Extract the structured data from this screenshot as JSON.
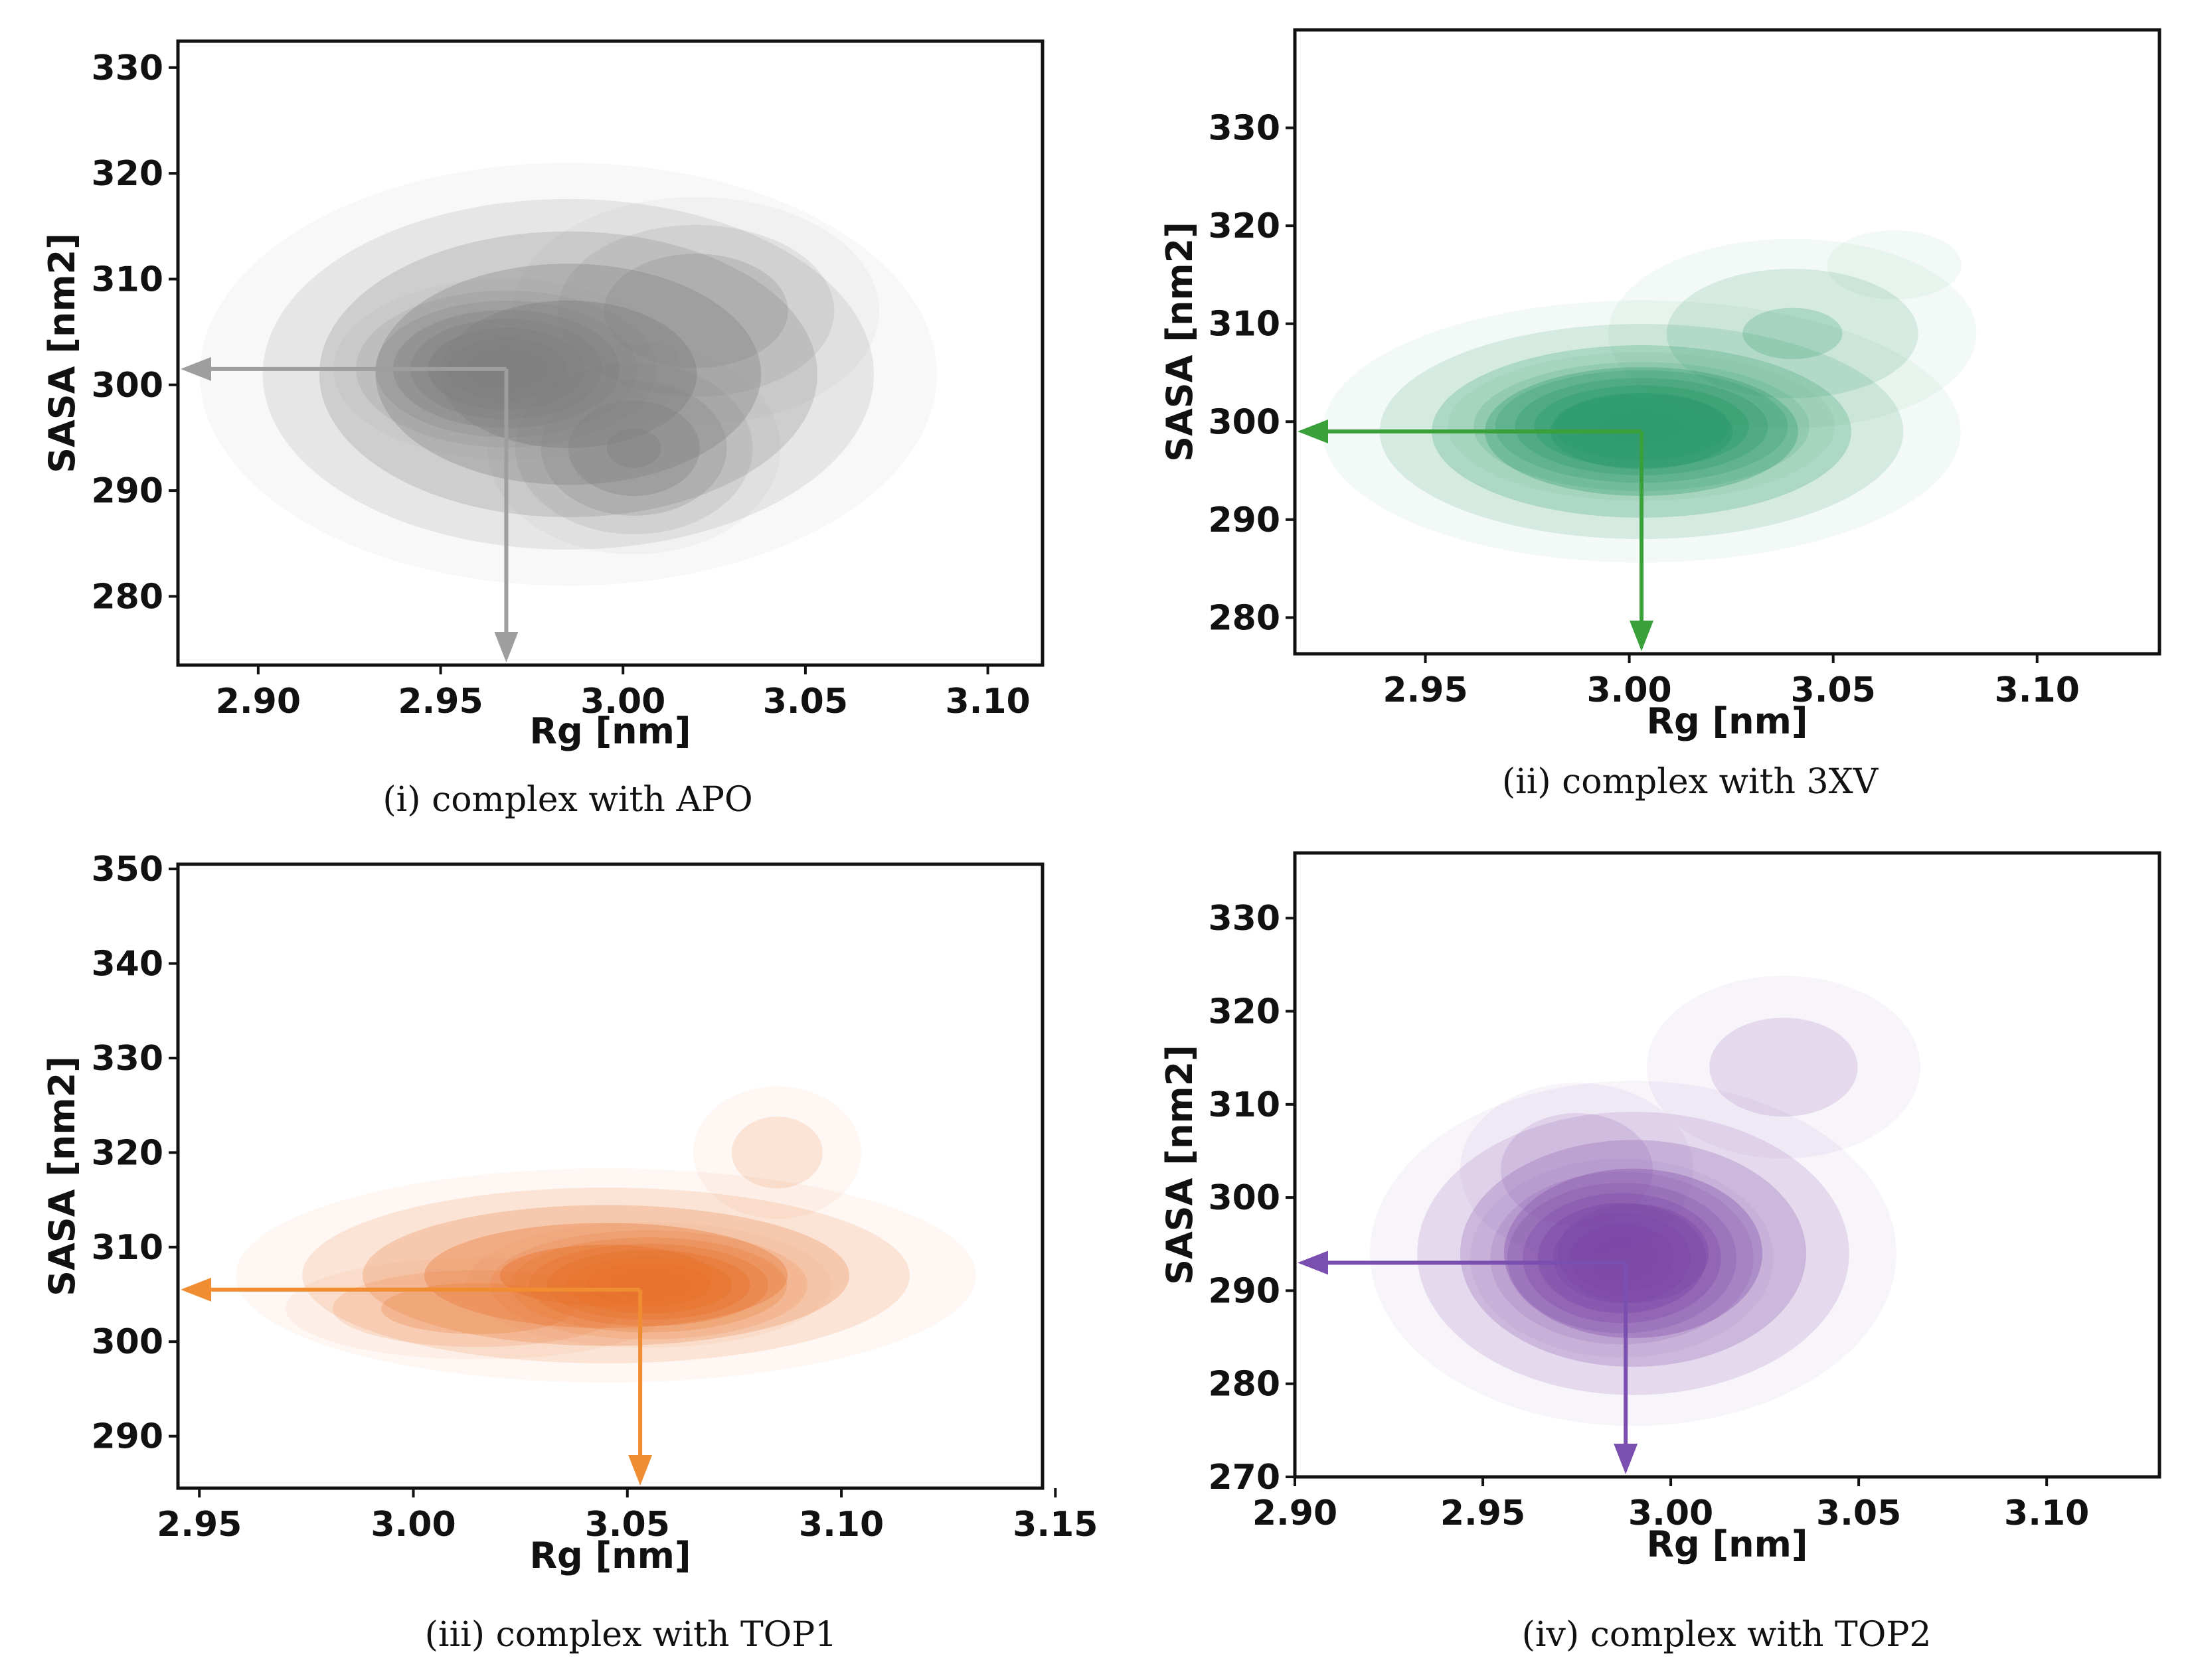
{
  "figure": {
    "panels": [
      {
        "caption": "(i) complex with APO",
        "color": "#808080",
        "arrow_color": "#9e9e9e",
        "chart_data": {
          "type": "kde-contour",
          "xlabel": "Rg [nm]",
          "ylabel": "SASA [nm2]",
          "xlim": [
            2.878,
            3.115
          ],
          "ylim": [
            273.5,
            332.5
          ],
          "xticks": [
            2.9,
            2.95,
            3.0,
            3.05,
            3.1
          ],
          "xtick_labels": [
            "2.90",
            "2.95",
            "3.00",
            "3.05",
            "3.10"
          ],
          "yticks": [
            280,
            290,
            300,
            310,
            320,
            330
          ],
          "ytick_labels": [
            "280",
            "290",
            "300",
            "310",
            "320",
            "330"
          ],
          "peak": {
            "x": 2.968,
            "y": 301.5
          },
          "density_blobs": [
            {
              "cx": 2.985,
              "cy": 301,
              "sx": 0.048,
              "sy": 9.5,
              "w": 0.55
            },
            {
              "cx": 2.968,
              "cy": 301.5,
              "sx": 0.02,
              "sy": 3.6,
              "w": 1.0
            },
            {
              "cx": 3.003,
              "cy": 294,
              "sx": 0.02,
              "sy": 5,
              "w": 0.45
            },
            {
              "cx": 3.02,
              "cy": 307,
              "sx": 0.028,
              "sy": 6,
              "w": 0.3
            }
          ]
        }
      },
      {
        "caption": "(ii) complex with 3XV",
        "color": "#2e9b6e",
        "arrow_color": "#3aa03a",
        "chart_data": {
          "type": "kde-contour",
          "xlabel": "Rg [nm]",
          "ylabel": "SASA [nm2]",
          "xlim": [
            2.918,
            3.13
          ],
          "ylim": [
            276.3,
            340
          ],
          "xticks": [
            2.95,
            3.0,
            3.05,
            3.1
          ],
          "xtick_labels": [
            "2.95",
            "3.00",
            "3.05",
            "3.10"
          ],
          "yticks": [
            280,
            290,
            300,
            310,
            320,
            330
          ],
          "ytick_labels": [
            "280",
            "290",
            "300",
            "310",
            "320",
            "330"
          ],
          "peak": {
            "x": 3.003,
            "y": 299
          },
          "density_blobs": [
            {
              "cx": 3.003,
              "cy": 299,
              "sx": 0.038,
              "sy": 6.5,
              "w": 0.5
            },
            {
              "cx": 3.003,
              "cy": 299.5,
              "sx": 0.02,
              "sy": 3.2,
              "w": 1.0
            },
            {
              "cx": 3.04,
              "cy": 309,
              "sx": 0.028,
              "sy": 6,
              "w": 0.22
            },
            {
              "cx": 3.065,
              "cy": 316,
              "sx": 0.014,
              "sy": 3,
              "w": 0.12
            }
          ]
        }
      },
      {
        "caption": "(iii) complex with TOP1",
        "color": "#e8732e",
        "arrow_color": "#f08d32",
        "chart_data": {
          "type": "kde-contour",
          "xlabel": "Rg [nm]",
          "ylabel": "SASA [nm2]",
          "xlim": [
            2.945,
            3.147
          ],
          "ylim": [
            284.5,
            350.5
          ],
          "xticks": [
            2.95,
            3.0,
            3.05,
            3.1,
            3.15
          ],
          "xtick_labels": [
            "2.95",
            "3.00",
            "3.05",
            "3.10",
            "3.15"
          ],
          "yticks": [
            290,
            300,
            310,
            320,
            330,
            340,
            350
          ],
          "ytick_labels": [
            "290",
            "300",
            "310",
            "320",
            "330",
            "340",
            "350"
          ],
          "peak": {
            "x": 3.053,
            "y": 305.5
          },
          "density_blobs": [
            {
              "cx": 3.045,
              "cy": 307,
              "sx": 0.042,
              "sy": 5.5,
              "w": 0.5
            },
            {
              "cx": 3.055,
              "cy": 306,
              "sx": 0.018,
              "sy": 2.8,
              "w": 1.0
            },
            {
              "cx": 3.085,
              "cy": 320,
              "sx": 0.014,
              "sy": 5,
              "w": 0.16
            },
            {
              "cx": 3.015,
              "cy": 303.5,
              "sx": 0.025,
              "sy": 3,
              "w": 0.3
            }
          ]
        }
      },
      {
        "caption": "(iv) complex with TOP2",
        "color": "#7d4aa8",
        "arrow_color": "#7a4fb0",
        "chart_data": {
          "type": "kde-contour",
          "xlabel": "Rg [nm]",
          "ylabel": "SASA [nm2]",
          "xlim": [
            2.9,
            3.13
          ],
          "ylim": [
            270,
            337
          ],
          "xticks": [
            2.9,
            2.95,
            3.0,
            3.05,
            3.1
          ],
          "xtick_labels": [
            "2.90",
            "2.95",
            "3.00",
            "3.05",
            "3.10"
          ],
          "yticks": [
            270,
            280,
            290,
            300,
            310,
            320,
            330
          ],
          "ytick_labels": [
            "270",
            "280",
            "290",
            "300",
            "310",
            "320",
            "330"
          ],
          "peak": {
            "x": 2.988,
            "y": 293
          },
          "density_blobs": [
            {
              "cx": 2.99,
              "cy": 294,
              "sx": 0.034,
              "sy": 9,
              "w": 0.5
            },
            {
              "cx": 2.987,
              "cy": 293.5,
              "sx": 0.017,
              "sy": 4.5,
              "w": 1.0
            },
            {
              "cx": 3.03,
              "cy": 314,
              "sx": 0.026,
              "sy": 7,
              "w": 0.16
            },
            {
              "cx": 2.975,
              "cy": 303,
              "sx": 0.02,
              "sy": 6,
              "w": 0.2
            }
          ]
        }
      }
    ]
  }
}
